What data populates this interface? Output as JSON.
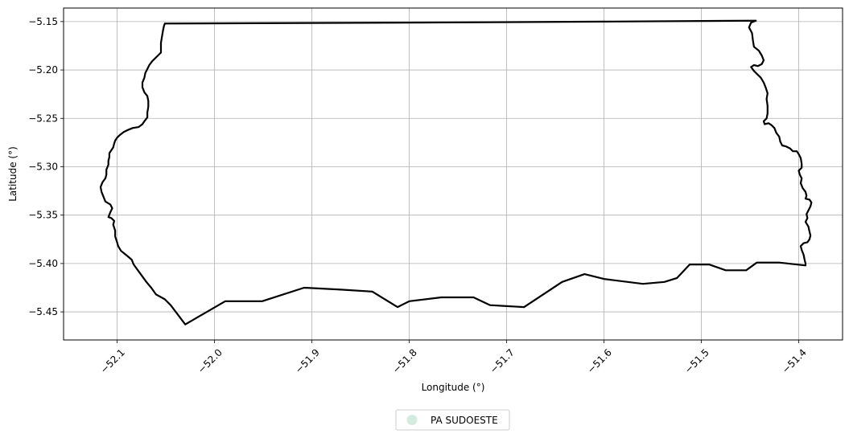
{
  "chart_data": {
    "type": "map",
    "xlabel": "Longitude (°)",
    "ylabel": "Latitude (°)",
    "xlim": [
      -52.155,
      -51.355
    ],
    "ylim": [
      -5.479,
      -5.136
    ],
    "x_ticks": [
      -52.1,
      -52.0,
      -51.9,
      -51.8,
      -51.7,
      -51.6,
      -51.5,
      -51.4
    ],
    "x_tick_labels": [
      "−52.1",
      "−52.0",
      "−51.9",
      "−51.8",
      "−51.7",
      "−51.6",
      "−51.5",
      "−51.4"
    ],
    "y_ticks": [
      -5.15,
      -5.2,
      -5.25,
      -5.3,
      -5.35,
      -5.4,
      -5.45
    ],
    "y_tick_labels": [
      "−5.15",
      "−5.20",
      "−5.25",
      "−5.30",
      "−5.35",
      "−5.40",
      "−5.45"
    ],
    "grid": true,
    "legend_position": "bottom-center",
    "legend": [
      {
        "name": "PA SUDOESTE",
        "color": "#d4ece0"
      }
    ],
    "boundary_color": "#000000",
    "boundary": [
      [
        -52.051,
        -5.152
      ],
      [
        -51.8,
        -5.151
      ],
      [
        -51.6,
        -5.15
      ],
      [
        -51.444,
        -5.149
      ],
      [
        -51.449,
        -5.151
      ],
      [
        -51.451,
        -5.156
      ],
      [
        -51.448,
        -5.162
      ],
      [
        -51.447,
        -5.17
      ],
      [
        -51.446,
        -5.176
      ],
      [
        -51.441,
        -5.18
      ],
      [
        -51.438,
        -5.185
      ],
      [
        -51.436,
        -5.19
      ],
      [
        -51.438,
        -5.194
      ],
      [
        -51.442,
        -5.196
      ],
      [
        -51.446,
        -5.195
      ],
      [
        -51.449,
        -5.197
      ],
      [
        -51.446,
        -5.201
      ],
      [
        -51.443,
        -5.204
      ],
      [
        -51.439,
        -5.208
      ],
      [
        -51.436,
        -5.213
      ],
      [
        -51.434,
        -5.218
      ],
      [
        -51.432,
        -5.224
      ],
      [
        -51.433,
        -5.23
      ],
      [
        -51.432,
        -5.237
      ],
      [
        -51.432,
        -5.245
      ],
      [
        -51.433,
        -5.25
      ],
      [
        -51.436,
        -5.253
      ],
      [
        -51.435,
        -5.256
      ],
      [
        -51.431,
        -5.255
      ],
      [
        -51.428,
        -5.257
      ],
      [
        -51.425,
        -5.26
      ],
      [
        -51.423,
        -5.265
      ],
      [
        -51.42,
        -5.269
      ],
      [
        -51.419,
        -5.274
      ],
      [
        -51.417,
        -5.278
      ],
      [
        -51.413,
        -5.279
      ],
      [
        -51.409,
        -5.281
      ],
      [
        -51.406,
        -5.284
      ],
      [
        -51.402,
        -5.284
      ],
      [
        -51.4,
        -5.287
      ],
      [
        -51.398,
        -5.291
      ],
      [
        -51.397,
        -5.297
      ],
      [
        -51.397,
        -5.301
      ],
      [
        -51.4,
        -5.304
      ],
      [
        -51.399,
        -5.308
      ],
      [
        -51.397,
        -5.312
      ],
      [
        -51.398,
        -5.317
      ],
      [
        -51.396,
        -5.322
      ],
      [
        -51.393,
        -5.326
      ],
      [
        -51.392,
        -5.33
      ],
      [
        -51.393,
        -5.333
      ],
      [
        -51.389,
        -5.334
      ],
      [
        -51.387,
        -5.337
      ],
      [
        -51.388,
        -5.341
      ],
      [
        -51.39,
        -5.345
      ],
      [
        -51.392,
        -5.349
      ],
      [
        -51.391,
        -5.353
      ],
      [
        -51.393,
        -5.357
      ],
      [
        -51.39,
        -5.362
      ],
      [
        -51.389,
        -5.367
      ],
      [
        -51.388,
        -5.371
      ],
      [
        -51.389,
        -5.375
      ],
      [
        -51.391,
        -5.378
      ],
      [
        -51.395,
        -5.379
      ],
      [
        -51.398,
        -5.382
      ],
      [
        -51.397,
        -5.386
      ],
      [
        -51.395,
        -5.391
      ],
      [
        -51.394,
        -5.396
      ],
      [
        -51.393,
        -5.4
      ],
      [
        -51.393,
        -5.402
      ],
      [
        -51.42,
        -5.399
      ],
      [
        -51.443,
        -5.399
      ],
      [
        -51.454,
        -5.407
      ],
      [
        -51.475,
        -5.407
      ],
      [
        -51.492,
        -5.401
      ],
      [
        -51.512,
        -5.401
      ],
      [
        -51.525,
        -5.415
      ],
      [
        -51.538,
        -5.419
      ],
      [
        -51.56,
        -5.421
      ],
      [
        -51.6,
        -5.416
      ],
      [
        -51.62,
        -5.411
      ],
      [
        -51.643,
        -5.419
      ],
      [
        -51.682,
        -5.445
      ],
      [
        -51.717,
        -5.443
      ],
      [
        -51.734,
        -5.435
      ],
      [
        -51.767,
        -5.435
      ],
      [
        -51.8,
        -5.439
      ],
      [
        -51.812,
        -5.445
      ],
      [
        -51.838,
        -5.429
      ],
      [
        -51.87,
        -5.427
      ],
      [
        -51.908,
        -5.425
      ],
      [
        -51.951,
        -5.439
      ],
      [
        -51.989,
        -5.439
      ],
      [
        -52.03,
        -5.463
      ],
      [
        -52.045,
        -5.443
      ],
      [
        -52.051,
        -5.437
      ],
      [
        -52.06,
        -5.432
      ],
      [
        -52.065,
        -5.425
      ],
      [
        -52.07,
        -5.419
      ],
      [
        -52.083,
        -5.401
      ],
      [
        -52.085,
        -5.396
      ],
      [
        -52.091,
        -5.391
      ],
      [
        -52.096,
        -5.387
      ],
      [
        -52.099,
        -5.382
      ],
      [
        -52.1,
        -5.378
      ],
      [
        -52.102,
        -5.372
      ],
      [
        -52.102,
        -5.366
      ],
      [
        -52.104,
        -5.36
      ],
      [
        -52.103,
        -5.356
      ],
      [
        -52.106,
        -5.353
      ],
      [
        -52.109,
        -5.352
      ],
      [
        -52.107,
        -5.347
      ],
      [
        -52.105,
        -5.343
      ],
      [
        -52.107,
        -5.339
      ],
      [
        -52.112,
        -5.336
      ],
      [
        -52.114,
        -5.331
      ],
      [
        -52.116,
        -5.326
      ],
      [
        -52.117,
        -5.321
      ],
      [
        -52.115,
        -5.316
      ],
      [
        -52.112,
        -5.312
      ],
      [
        -52.111,
        -5.308
      ],
      [
        -52.111,
        -5.303
      ],
      [
        -52.109,
        -5.298
      ],
      [
        -52.109,
        -5.294
      ],
      [
        -52.108,
        -5.29
      ],
      [
        -52.108,
        -5.286
      ],
      [
        -52.106,
        -5.283
      ],
      [
        -52.104,
        -5.28
      ],
      [
        -52.103,
        -5.276
      ],
      [
        -52.102,
        -5.273
      ],
      [
        -52.1,
        -5.27
      ],
      [
        -52.097,
        -5.267
      ],
      [
        -52.093,
        -5.264
      ],
      [
        -52.089,
        -5.262
      ],
      [
        -52.084,
        -5.26
      ],
      [
        -52.078,
        -5.259
      ],
      [
        -52.074,
        -5.256
      ],
      [
        -52.072,
        -5.253
      ],
      [
        -52.069,
        -5.249
      ],
      [
        -52.069,
        -5.244
      ],
      [
        -52.068,
        -5.238
      ],
      [
        -52.068,
        -5.232
      ],
      [
        -52.069,
        -5.227
      ],
      [
        -52.072,
        -5.223
      ],
      [
        -52.074,
        -5.218
      ],
      [
        -52.074,
        -5.213
      ],
      [
        -52.072,
        -5.208
      ],
      [
        -52.071,
        -5.203
      ],
      [
        -52.069,
        -5.199
      ],
      [
        -52.067,
        -5.195
      ],
      [
        -52.064,
        -5.191
      ],
      [
        -52.061,
        -5.188
      ],
      [
        -52.058,
        -5.185
      ],
      [
        -52.055,
        -5.182
      ],
      [
        -52.055,
        -5.177
      ],
      [
        -52.055,
        -5.172
      ],
      [
        -52.054,
        -5.166
      ],
      [
        -52.053,
        -5.16
      ],
      [
        -52.052,
        -5.155
      ],
      [
        -52.051,
        -5.152
      ]
    ]
  }
}
